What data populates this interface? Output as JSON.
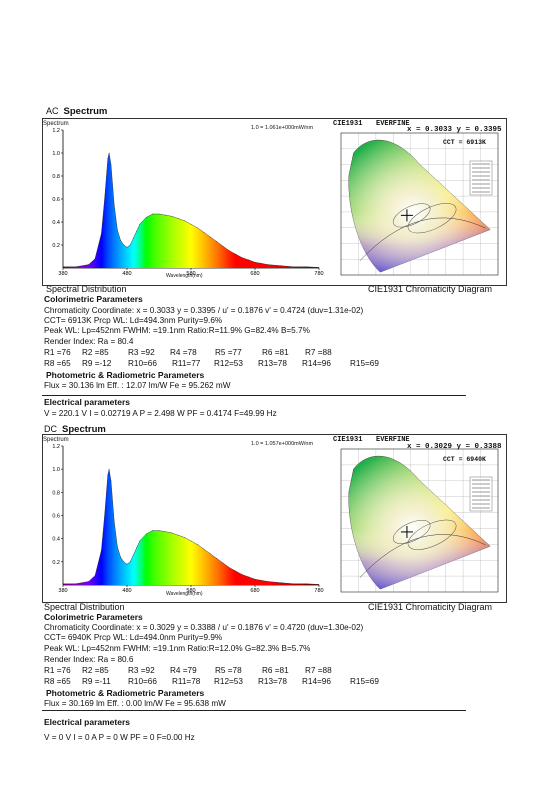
{
  "sections": [
    {
      "mode": "AC",
      "title": "Spectrum",
      "spectrum_scale_note": "1.0 = 1.061e+000mW/nm",
      "spectrum_axis_title": "Spectrum",
      "spectrum_xlabel": "Wavelength(nm)",
      "spectrum_caption": "Spectral Distribution",
      "cie_title": "CIE1931",
      "cie_brand": "EVERFINE",
      "cie_xy": "x = 0.3033  y = 0.3395",
      "cie_cct": "CCT = 6913K",
      "cie_caption": "CIE1931 Chromaticity Diagram",
      "colorimetric_heading": "Colorimetric Parameters",
      "lines": [
        "Chromaticity Coordinate: x = 0.3033 y = 0.3395 / u' = 0.1876 v' = 0.4724 (duv=1.31e-02)",
        "CCT=  6913K       Prcp WL:    Ld=494.3nm       Purity=9.6%",
        "Peak WL:  Lp=452nm  FWHM:   =19.1nm  Ratio:R=11.9% G=82.4% B=5.7%",
        "Render Index: Ra = 80.4"
      ],
      "r_row1": [
        "R1 =76",
        "R2 =85",
        "R3 =92",
        "R4 =78",
        "R5 =77",
        "R6 =81",
        "R7 =88"
      ],
      "r_row2": [
        "R8 =65",
        "R9 =-12",
        "R10=66",
        "R11=77",
        "R12=53",
        "R13=78",
        "R14=96",
        "R15=69"
      ],
      "photometric_heading": "Photometric & Radiometric Parameters",
      "flux_line": "Flux  = 30.136 lm    Eff. : 12.07 lm/W   Fe  = 95.262 mW",
      "electrical_heading": "Electrical parameters",
      "electrical_line": "V = 220.1 V     I = 0.02719 A     P = 2.498 W  PF = 0.4174  F=49.99 Hz"
    },
    {
      "mode": "DC",
      "title": "Spectrum",
      "spectrum_scale_note": "1.0 = 1.057e+000mW/nm",
      "spectrum_axis_title": "Spectrum",
      "spectrum_xlabel": "Wavelength(nm)",
      "spectrum_caption": "Spectral Distribution",
      "cie_title": "CIE1931",
      "cie_brand": "EVERFINE",
      "cie_xy": "x = 0.3029  y = 0.3388",
      "cie_cct": "CCT = 6940K",
      "cie_caption": "CIE1931 Chromaticity Diagram",
      "colorimetric_heading": "Colorimetric Parameters",
      "lines": [
        "Chromaticity Coordinate: x = 0.3029 y = 0.3388 / u' = 0.1876 v' = 0.4720 (duv=1.30e-02)",
        "CCT=  6940K       Prcp WL:    Ld=494.0nm       Purity=9.9%",
        "Peak WL:  Lp=452nm  FWHM:   =19.1nm  Ratio:R=12.0% G=82.3% B=5.7%",
        "Render Index: Ra = 80.6"
      ],
      "r_row1": [
        "R1 =76",
        "R2 =85",
        "R3 =92",
        "R4 =79",
        "R5 =78",
        "R6 =81",
        "R7 =88"
      ],
      "r_row2": [
        "R8 =65",
        "R9 =-11",
        "R10=66",
        "R11=78",
        "R12=53",
        "R13=78",
        "R14=96",
        "R15=69"
      ],
      "photometric_heading": "Photometric & Radiometric Parameters",
      "flux_line": "Flux  = 30.169 lm    Eff. : 0.00 lm/W   Fe  = 95.638 mW",
      "electrical_heading": "Electrical parameters",
      "electrical_line": "V = 0 V     I = 0 A     P = 0 W  PF = 0  F=0.00 Hz"
    }
  ],
  "chart_data": [
    {
      "type": "area",
      "title": "Spectrum",
      "xlabel": "Wavelength(nm)",
      "ylabel": "",
      "xlim": [
        380,
        780
      ],
      "ylim": [
        0,
        1.2
      ],
      "xticks": [
        380,
        480,
        580,
        680,
        780
      ],
      "yticks": [
        0.2,
        0.4,
        0.6,
        0.8,
        1.0,
        1.2
      ],
      "x": [
        380,
        400,
        420,
        430,
        440,
        445,
        450,
        452,
        455,
        460,
        465,
        470,
        475,
        480,
        485,
        490,
        495,
        500,
        510,
        520,
        530,
        540,
        550,
        560,
        570,
        580,
        590,
        600,
        610,
        620,
        630,
        640,
        650,
        660,
        670,
        680,
        690,
        700,
        720,
        740,
        760,
        780
      ],
      "y": [
        0.01,
        0.01,
        0.03,
        0.08,
        0.3,
        0.6,
        0.95,
        1.0,
        0.9,
        0.55,
        0.33,
        0.24,
        0.2,
        0.18,
        0.2,
        0.26,
        0.32,
        0.38,
        0.44,
        0.47,
        0.47,
        0.46,
        0.45,
        0.43,
        0.41,
        0.38,
        0.35,
        0.31,
        0.27,
        0.23,
        0.19,
        0.15,
        0.12,
        0.09,
        0.07,
        0.05,
        0.04,
        0.03,
        0.02,
        0.01,
        0.01,
        0.005
      ]
    },
    {
      "type": "area",
      "title": "Spectrum",
      "xlabel": "Wavelength(nm)",
      "ylabel": "",
      "xlim": [
        380,
        780
      ],
      "ylim": [
        0,
        1.2
      ],
      "xticks": [
        380,
        480,
        580,
        680,
        780
      ],
      "yticks": [
        0.2,
        0.4,
        0.6,
        0.8,
        1.0,
        1.2
      ],
      "x": [
        380,
        400,
        420,
        430,
        440,
        445,
        450,
        452,
        455,
        460,
        465,
        470,
        475,
        480,
        485,
        490,
        495,
        500,
        510,
        520,
        530,
        540,
        550,
        560,
        570,
        580,
        590,
        600,
        610,
        620,
        630,
        640,
        650,
        660,
        670,
        680,
        690,
        700,
        720,
        740,
        760,
        780
      ],
      "y": [
        0.01,
        0.01,
        0.03,
        0.08,
        0.3,
        0.6,
        0.95,
        1.0,
        0.9,
        0.55,
        0.33,
        0.24,
        0.2,
        0.18,
        0.2,
        0.26,
        0.32,
        0.38,
        0.44,
        0.47,
        0.47,
        0.46,
        0.45,
        0.43,
        0.41,
        0.38,
        0.35,
        0.31,
        0.27,
        0.23,
        0.19,
        0.15,
        0.12,
        0.09,
        0.07,
        0.05,
        0.04,
        0.03,
        0.02,
        0.01,
        0.01,
        0.005
      ]
    }
  ]
}
